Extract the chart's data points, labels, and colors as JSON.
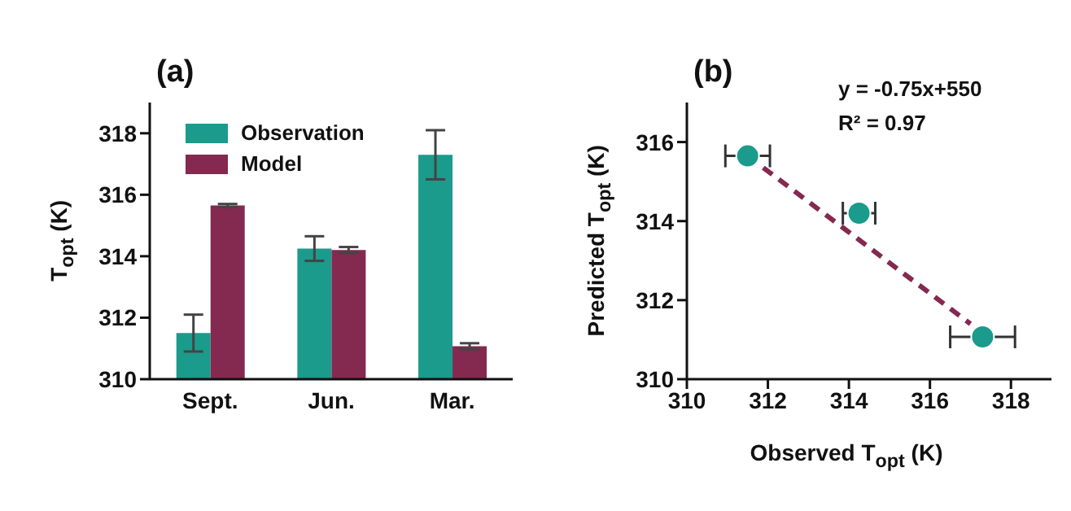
{
  "chart_data": [
    {
      "type": "bar",
      "title": "(a)",
      "ylabel": "T$_{opt}$ (K)",
      "categories": [
        "Sept.",
        "Jun.",
        "Mar."
      ],
      "series": [
        {
          "name": "Observation",
          "color": "#1a9b8c",
          "values": [
            311.5,
            314.25,
            317.3
          ],
          "errors": [
            0.6,
            0.4,
            0.8
          ]
        },
        {
          "name": "Model",
          "color": "#84294f",
          "values": [
            315.65,
            314.2,
            311.07
          ],
          "errors": [
            0.05,
            0.1,
            0.1
          ]
        }
      ],
      "ylim": [
        310,
        319
      ],
      "yticks": [
        310,
        312,
        314,
        316,
        318
      ],
      "legend": "top left",
      "grid": false
    },
    {
      "type": "scatter",
      "title": "(b)",
      "xlabel": "Observed T$_{opt}$ (K)",
      "ylabel": "Predicted T$_{opt}$ (K)",
      "x": [
        311.5,
        314.25,
        317.3
      ],
      "series": [
        {
          "color": "#1a9b8c",
          "values": [
            315.65,
            314.2,
            311.07
          ],
          "xerrors": [
            0.55,
            0.4,
            0.8
          ],
          "marker": "circle"
        },
        {
          "type": "line",
          "color": "#84294f",
          "x": [
            311.5,
            317.0
          ],
          "values": [
            315.65,
            311.4
          ],
          "line_style": "dashed",
          "marker": "none"
        }
      ],
      "xlim": [
        310,
        319
      ],
      "xticks": [
        310,
        312,
        314,
        316,
        318
      ],
      "ylim": [
        310,
        317
      ],
      "yticks": [
        310,
        312,
        314,
        316
      ],
      "annotations": [
        "y = -0.75x+550",
        "R² = 0.97"
      ],
      "legend": false,
      "grid": false
    }
  ]
}
